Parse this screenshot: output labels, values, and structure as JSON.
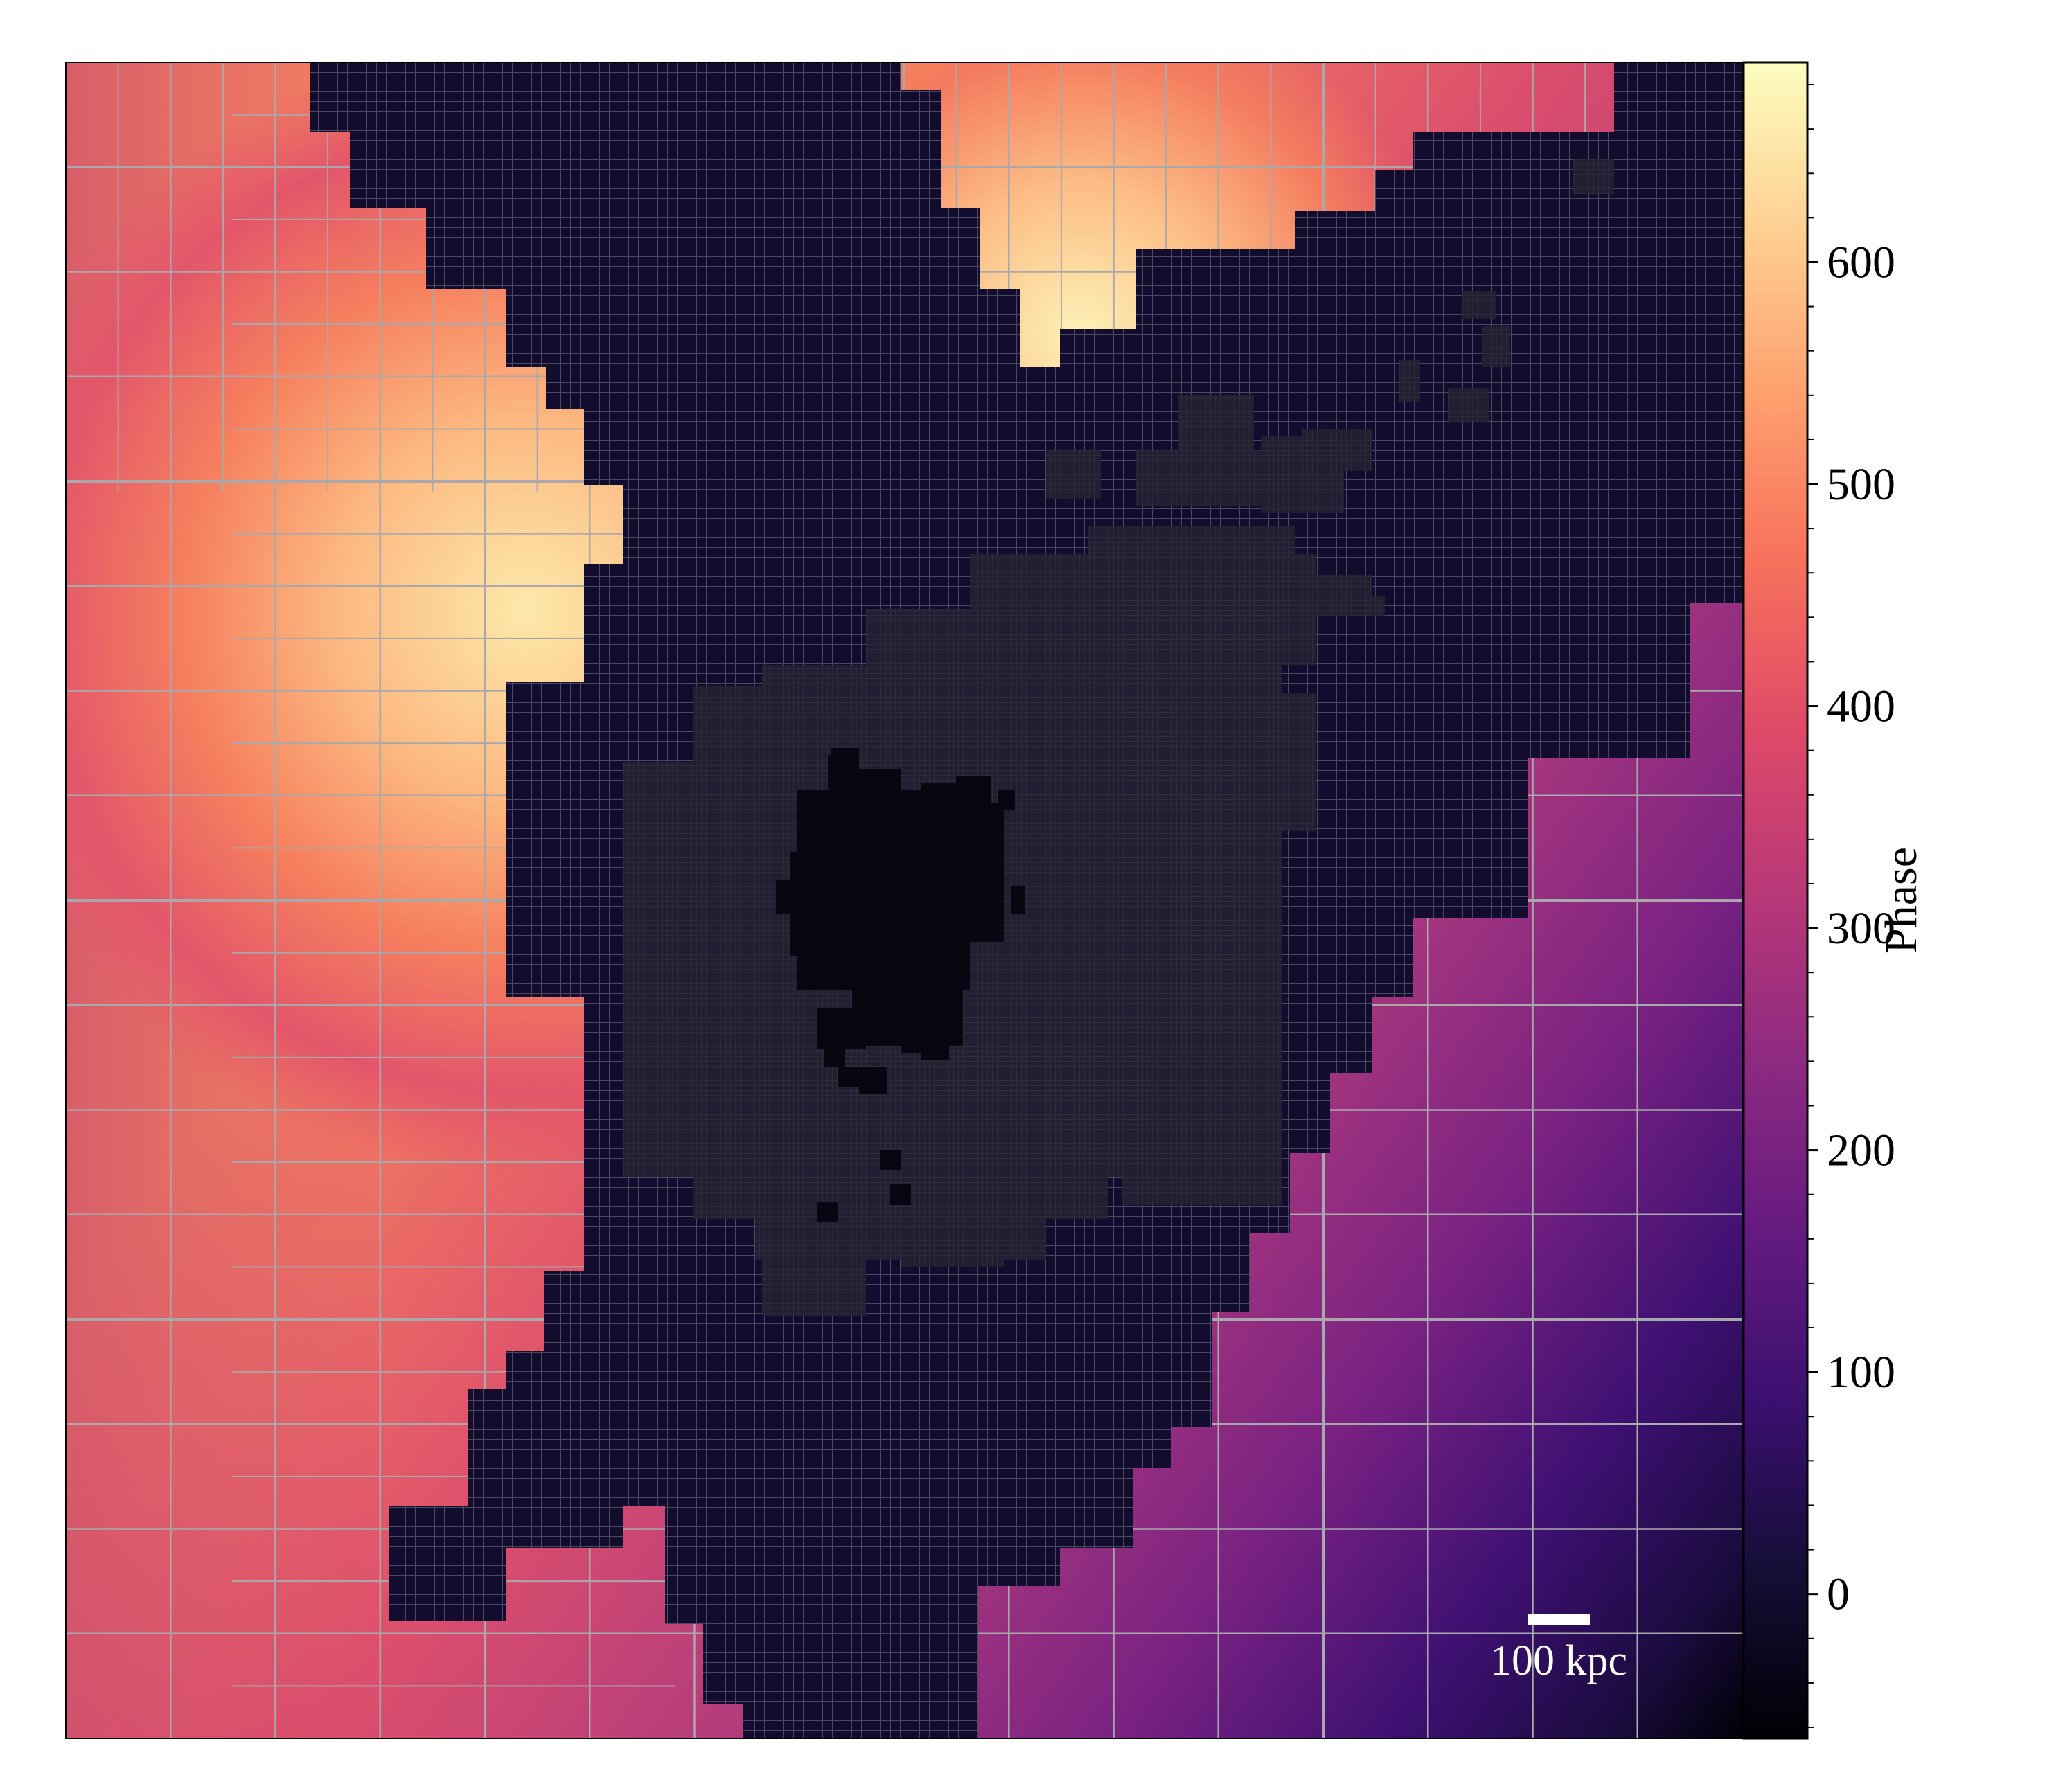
{
  "chart_data": {
    "type": "heatmap",
    "title": "",
    "xlabel": "",
    "ylabel": "",
    "grid": true,
    "grid_description": "adaptive mesh refinement cell boundaries overlaid on the field",
    "colormap": "magma",
    "colorbar": {
      "label": "Phase",
      "range": [
        -65,
        690
      ],
      "ticks": [
        0,
        100,
        200,
        300,
        400,
        500,
        600
      ],
      "tick_labels": [
        "0",
        "100",
        "200",
        "300",
        "400",
        "500",
        "600"
      ],
      "placement": "right"
    },
    "scale_bar": {
      "label": "100 kpc",
      "placement": "bottom-right"
    },
    "regions": [
      {
        "name": "central halo",
        "phase_approx": 0
      },
      {
        "name": "upper-left plateau",
        "phase_approx": 650
      },
      {
        "name": "top-center lobe",
        "phase_approx": 660
      },
      {
        "name": "lower-right minimum",
        "phase_approx": -60
      }
    ],
    "colors": {
      "halo_dark": "#120d2e",
      "core": "#080610",
      "grid_light": "#a9a9ad",
      "grid_dark": "#3c3b4c",
      "scale_bar": "#ffffff"
    }
  }
}
